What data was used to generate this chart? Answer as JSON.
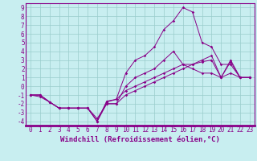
{
  "xlabel": "Windchill (Refroidissement éolien,°C)",
  "bg_color": "#c8eef0",
  "line_color": "#880088",
  "grid_color": "#99cccc",
  "xlim": [
    -0.5,
    23.5
  ],
  "ylim": [
    -4.5,
    9.5
  ],
  "xticks": [
    0,
    1,
    2,
    3,
    4,
    5,
    6,
    7,
    8,
    9,
    10,
    11,
    12,
    13,
    14,
    15,
    16,
    17,
    18,
    19,
    20,
    21,
    22,
    23
  ],
  "yticks": [
    -4,
    -3,
    -2,
    -1,
    0,
    1,
    2,
    3,
    4,
    5,
    6,
    7,
    8,
    9
  ],
  "series1_x": [
    0,
    1,
    2,
    3,
    4,
    5,
    6,
    7,
    8,
    9,
    10,
    11,
    12,
    13,
    14,
    15,
    16,
    17,
    18,
    19,
    20,
    21,
    22,
    23
  ],
  "series1_y": [
    -1,
    -1.2,
    -1.8,
    -2.5,
    -2.5,
    -2.5,
    -2.5,
    -4.0,
    -1.7,
    -1.5,
    -0.5,
    0.0,
    0.5,
    1.0,
    1.5,
    2.0,
    2.5,
    2.5,
    2.8,
    3.0,
    1.0,
    2.8,
    1.0,
    1.0
  ],
  "series2_x": [
    0,
    1,
    2,
    3,
    4,
    5,
    6,
    7,
    8,
    9,
    10,
    11,
    12,
    13,
    14,
    15,
    16,
    17,
    18,
    19,
    20,
    21,
    22,
    23
  ],
  "series2_y": [
    -1,
    -1.0,
    -1.8,
    -2.5,
    -2.5,
    -2.5,
    -2.5,
    -4.0,
    -1.8,
    -1.5,
    1.5,
    3.0,
    3.5,
    4.5,
    6.5,
    7.5,
    9.0,
    8.5,
    5.0,
    4.5,
    2.5,
    2.5,
    1.0,
    1.0
  ],
  "series3_x": [
    0,
    1,
    2,
    3,
    4,
    5,
    6,
    7,
    8,
    9,
    10,
    11,
    12,
    13,
    14,
    15,
    16,
    17,
    18,
    19,
    20,
    21,
    22,
    23
  ],
  "series3_y": [
    -1,
    -1.0,
    -1.8,
    -2.5,
    -2.5,
    -2.5,
    -2.5,
    -4.0,
    -2.0,
    -2.0,
    0.0,
    1.0,
    1.5,
    2.0,
    3.0,
    4.0,
    2.5,
    2.0,
    1.5,
    1.5,
    1.0,
    3.0,
    1.0,
    1.0
  ],
  "series4_x": [
    0,
    1,
    2,
    3,
    4,
    5,
    6,
    7,
    8,
    9,
    10,
    11,
    12,
    13,
    14,
    15,
    16,
    17,
    18,
    19,
    20,
    21,
    22,
    23
  ],
  "series4_y": [
    -1,
    -1.0,
    -1.8,
    -2.5,
    -2.5,
    -2.5,
    -2.5,
    -3.7,
    -2.0,
    -2.0,
    -1.0,
    -0.5,
    0.0,
    0.5,
    1.0,
    1.5,
    2.0,
    2.5,
    3.0,
    3.5,
    1.0,
    1.5,
    1.0,
    1.0
  ],
  "font_family": "monospace",
  "tick_fontsize": 5.5,
  "label_fontsize": 6.5
}
